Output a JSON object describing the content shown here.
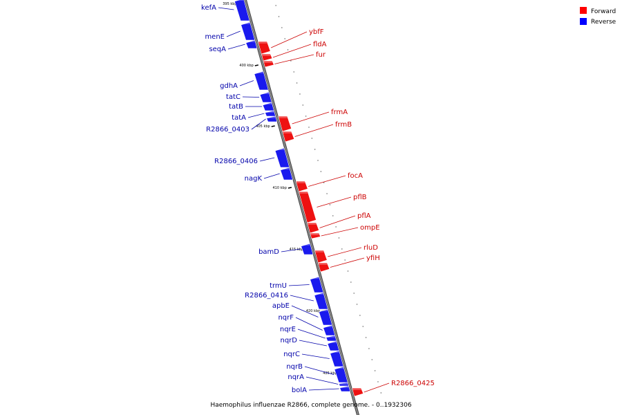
{
  "caption": "Haemophilus influenzae R2866, complete genome. - 0..1932306",
  "legend": {
    "forward_label": "Forward",
    "reverse_label": "Reverse",
    "forward_color": "#ff0000",
    "reverse_color": "#0000ff"
  },
  "colors": {
    "forward_fill": "#ee1111",
    "forward_label": "#cc0000",
    "reverse_fill": "#1a1aee",
    "reverse_label": "#0000aa",
    "backbone": "#888888"
  },
  "ticks": [
    "395 kbp",
    "400 kbp",
    "405 kbp",
    "410 kbp",
    "415 kbp",
    "420 kbp",
    "425 kbp"
  ],
  "reverse_genes": [
    "kefA",
    "menE",
    "seqA",
    "gdhA",
    "tatC",
    "tatB",
    "tatA",
    "R2866_0403",
    "R2866_0406",
    "nagK",
    "bamD",
    "trmU",
    "R2866_0416",
    "apbE",
    "nqrF",
    "nqrE",
    "nqrD",
    "nqrC",
    "nqrB",
    "nqrA",
    "bolA"
  ],
  "forward_genes": [
    "ybfF",
    "fldA",
    "fur",
    "frmA",
    "frmB",
    "focA",
    "pflB",
    "pflA",
    "ompE",
    "rluD",
    "yfiH",
    "R2866_0425"
  ]
}
